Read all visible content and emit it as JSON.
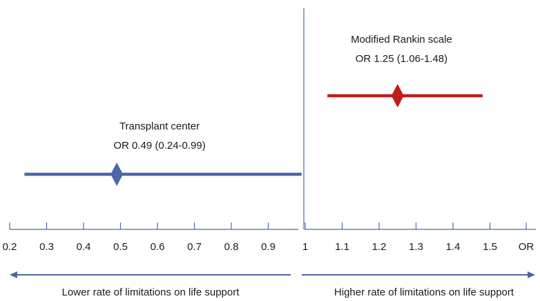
{
  "chart_data": {
    "type": "forest",
    "x_axis": {
      "ticks": [
        0.2,
        0.3,
        0.4,
        0.5,
        0.6,
        0.7,
        0.8,
        0.9,
        1,
        1.1,
        1.2,
        1.3,
        1.4,
        1.5
      ],
      "tick_labels": [
        "0.2",
        "0.3",
        "0.4",
        "0.5",
        "0.6",
        "0.7",
        "0.8",
        "0.9",
        "1",
        "1.1",
        "1.2",
        "1.3",
        "1.4",
        "1.5"
      ],
      "unit_label": "OR",
      "range": [
        0.2,
        1.6
      ],
      "split_axis_at": 1,
      "reference_line": 1
    },
    "series": [
      {
        "name": "Transplant center",
        "estimate_label": "OR 0.49 (0.24-0.99)",
        "or": 0.49,
        "ci_low": 0.24,
        "ci_high": 0.99,
        "color": "#4a67a8"
      },
      {
        "name": "Modified Rankin scale",
        "estimate_label": "OR 1.25 (1.06-1.48)",
        "or": 1.25,
        "ci_low": 1.06,
        "ci_high": 1.48,
        "color": "#c41b1b"
      }
    ],
    "direction_labels": {
      "left": "Lower rate of limitations on life support",
      "right": "Higher rate of limitations on life support"
    },
    "axis_color": "#4a67a8",
    "reference_line_color": "#4a67a8"
  }
}
